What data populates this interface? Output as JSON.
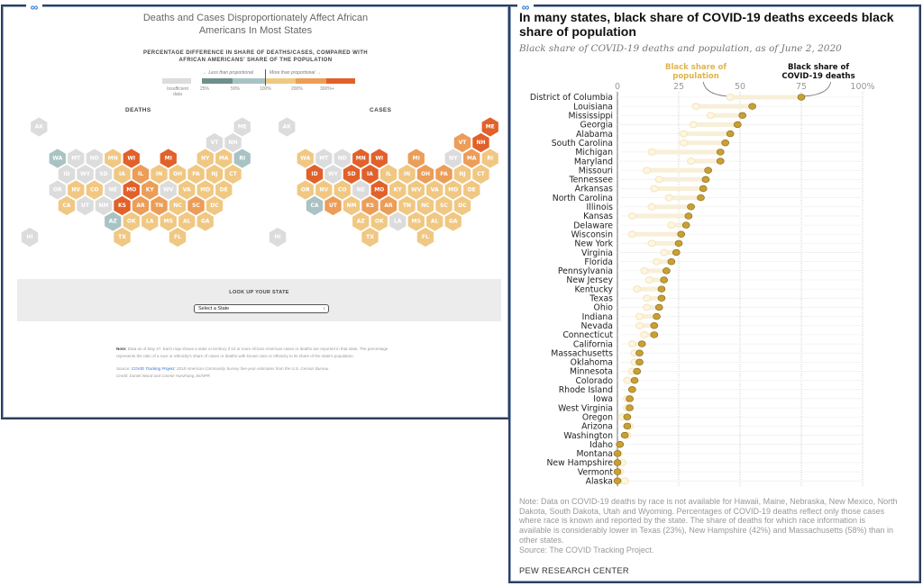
{
  "left_panel": {
    "title": "Deaths and Cases Disproportionately Affect African Americans In Most States",
    "subtitle_line1": "PERCENTAGE DIFFERENCE IN SHARE OF DEATHS/CASES, COMPARED WITH",
    "subtitle_line2": "AFRICAN AMERICANS' SHARE OF THE POPULATION",
    "legend": {
      "less_label": "← Less than proportional",
      "more_label": "More than proportional →",
      "insufficient_label_1": "Insufficient",
      "insufficient_label_2": "data",
      "ticks": [
        "25%",
        "50%",
        "100%",
        "200%",
        "300%+"
      ],
      "colors": {
        "insufficient": "#dcdcdc",
        "b25": "#6f8f8c",
        "b50": "#a9c3c4",
        "b100": "#f0c883",
        "b200": "#ec9d58",
        "b300": "#e1612a"
      }
    },
    "maps": [
      {
        "title": "DEATHS",
        "states": {
          "AK": "insufficient",
          "ME": "insufficient",
          "VT": "insufficient",
          "NH": "insufficient",
          "WA": "b50",
          "MT": "insufficient",
          "ND": "insufficient",
          "MN": "b100",
          "WI": "b300",
          "MI": "b300",
          "NY": "b100",
          "MA": "b100",
          "RI": "b50",
          "ID": "insufficient",
          "WY": "insufficient",
          "SD": "insufficient",
          "IA": "b100",
          "IL": "b200",
          "IN": "b100",
          "OH": "b100",
          "PA": "b100",
          "NJ": "b100",
          "CT": "b100",
          "OR": "insufficient",
          "NV": "b100",
          "CO": "b100",
          "NE": "insufficient",
          "MO": "b300",
          "KY": "b200",
          "WV": "insufficient",
          "VA": "b100",
          "MD": "b100",
          "DE": "b100",
          "CA": "b100",
          "UT": "insufficient",
          "NM": "insufficient",
          "KS": "b300",
          "AR": "b200",
          "TN": "b200",
          "NC": "b100",
          "SC": "b200",
          "DC": "b100",
          "AZ": "b50",
          "OK": "b100",
          "LA": "b100",
          "MS": "b100",
          "AL": "b100",
          "GA": "b100",
          "HI": "insufficient",
          "TX": "b100",
          "FL": "b100"
        }
      },
      {
        "title": "CASES",
        "states": {
          "AK": "insufficient",
          "ME": "b300",
          "VT": "b200",
          "NH": "b300",
          "WA": "b100",
          "MT": "insufficient",
          "ND": "insufficient",
          "MN": "b300",
          "WI": "b300",
          "MI": "b200",
          "NY": "insufficient",
          "MA": "b200",
          "RI": "b100",
          "ID": "b300",
          "WY": "insufficient",
          "SD": "b300",
          "IA": "b300",
          "IL": "b100",
          "IN": "b100",
          "OH": "b200",
          "PA": "b200",
          "NJ": "b100",
          "CT": "b100",
          "OR": "b100",
          "NV": "b100",
          "CO": "b100",
          "NE": "insufficient",
          "MO": "b300",
          "KY": "b100",
          "WV": "b100",
          "VA": "b100",
          "MD": "b100",
          "DE": "b100",
          "CA": "b50",
          "UT": "b200",
          "NM": "b100",
          "KS": "b200",
          "AR": "b200",
          "TN": "b100",
          "NC": "b100",
          "SC": "b100",
          "DC": "b100",
          "AZ": "b100",
          "OK": "b100",
          "LA": "insufficient",
          "MS": "b100",
          "AL": "b100",
          "GA": "b100",
          "HI": "insufficient",
          "TX": "b100",
          "FL": "b100"
        }
      }
    ],
    "lookup": {
      "title": "LOOK UP YOUR STATE",
      "select_value": "Select a State",
      "arrow": "↕"
    },
    "note": {
      "label": "Note:",
      "text": "Data as of May 27. Each map shows a state or territory if 10 or more African American cases or deaths are reported in that state. The percentage represents the ratio of a race or ethnicity's share of cases or deaths with known race or ethnicity to its share of the state's population.",
      "source_prefix": "Source: ",
      "source_link": "COVID Tracking Project",
      "source_rest": "; 2018 American Community Survey five-year estimates from the U.S. Census Bureau",
      "credit": "Credit: Daniel Wood and Connie Hanzhang Jin/NPR"
    }
  },
  "right_panel": {
    "title": "In many states, black share of COVID-19 deaths exceeds black share of population",
    "subtitle": "Black share of COVID-19 deaths and population, as of June 2, 2020",
    "note": "Note: Data on COVID-19 deaths by race is not available for Hawaii, Maine, Nebraska, New Mexico, North Dakota, South Dakota, Utah and Wyoming. Percentages of COVID-19 deaths reflect only those cases where race is known and reported by the state. The share of deaths for which race information is available is considerably lower in Texas (23%), New Hampshire (42%) and Massachusetts (58%) than in other states.",
    "source": "Source: The COVID Tracking Project.",
    "brand": "PEW RESEARCH CENTER",
    "colors": {
      "deaths": "#c9a032",
      "population": "#f6e7bf",
      "bar": "#f8efd8"
    }
  },
  "chart_data": {
    "type": "dot-plot",
    "title": "In many states, black share of COVID-19 deaths exceeds black share of population",
    "subtitle": "Black share of COVID-19 deaths and population, as of June 2, 2020",
    "xlim": [
      0,
      100
    ],
    "x_ticks": [
      "0",
      "25",
      "50",
      "75",
      "100%"
    ],
    "x_tick_values": [
      0,
      25,
      50,
      75,
      100
    ],
    "grid": true,
    "series_labels": {
      "population": "Black share of population",
      "deaths": "Black share of COVID-19 deaths"
    },
    "categories": [
      "District of Columbia",
      "Louisiana",
      "Mississippi",
      "Georgia",
      "Alabama",
      "South Carolina",
      "Michigan",
      "Maryland",
      "Missouri",
      "Tennessee",
      "Arkansas",
      "North Carolina",
      "Illinois",
      "Kansas",
      "Delaware",
      "Wisconsin",
      "New York",
      "Virginia",
      "Florida",
      "Pennsylvania",
      "New Jersey",
      "Kentucky",
      "Texas",
      "Ohio",
      "Indiana",
      "Nevada",
      "Connecticut",
      "California",
      "Massachusetts",
      "Oklahoma",
      "Minnesota",
      "Colorado",
      "Rhode Island",
      "Iowa",
      "West Virginia",
      "Oregon",
      "Arizona",
      "Washington",
      "Idaho",
      "Montana",
      "New Hampshire",
      "Vermont",
      "Alaska"
    ],
    "series": [
      {
        "name": "Black share of population",
        "values": [
          46,
          32,
          38,
          31,
          27,
          27,
          14,
          30,
          12,
          17,
          15,
          21,
          14,
          6,
          22,
          6,
          14,
          19,
          16,
          11,
          13,
          8,
          12,
          12,
          9,
          9,
          11,
          6,
          7,
          7,
          6,
          4,
          6,
          4,
          4,
          2,
          5,
          4,
          1,
          0.5,
          2,
          1,
          3
        ]
      },
      {
        "name": "Black share of COVID-19 deaths",
        "values": [
          75,
          55,
          51,
          49,
          46,
          44,
          42,
          42,
          37,
          36,
          35,
          34,
          30,
          29,
          28,
          26,
          25,
          24,
          22,
          20,
          19,
          18,
          18,
          17,
          16,
          15,
          15,
          10,
          9,
          9,
          8,
          7,
          6,
          5,
          5,
          4,
          4,
          3,
          1,
          0,
          0,
          0,
          0
        ]
      }
    ]
  }
}
